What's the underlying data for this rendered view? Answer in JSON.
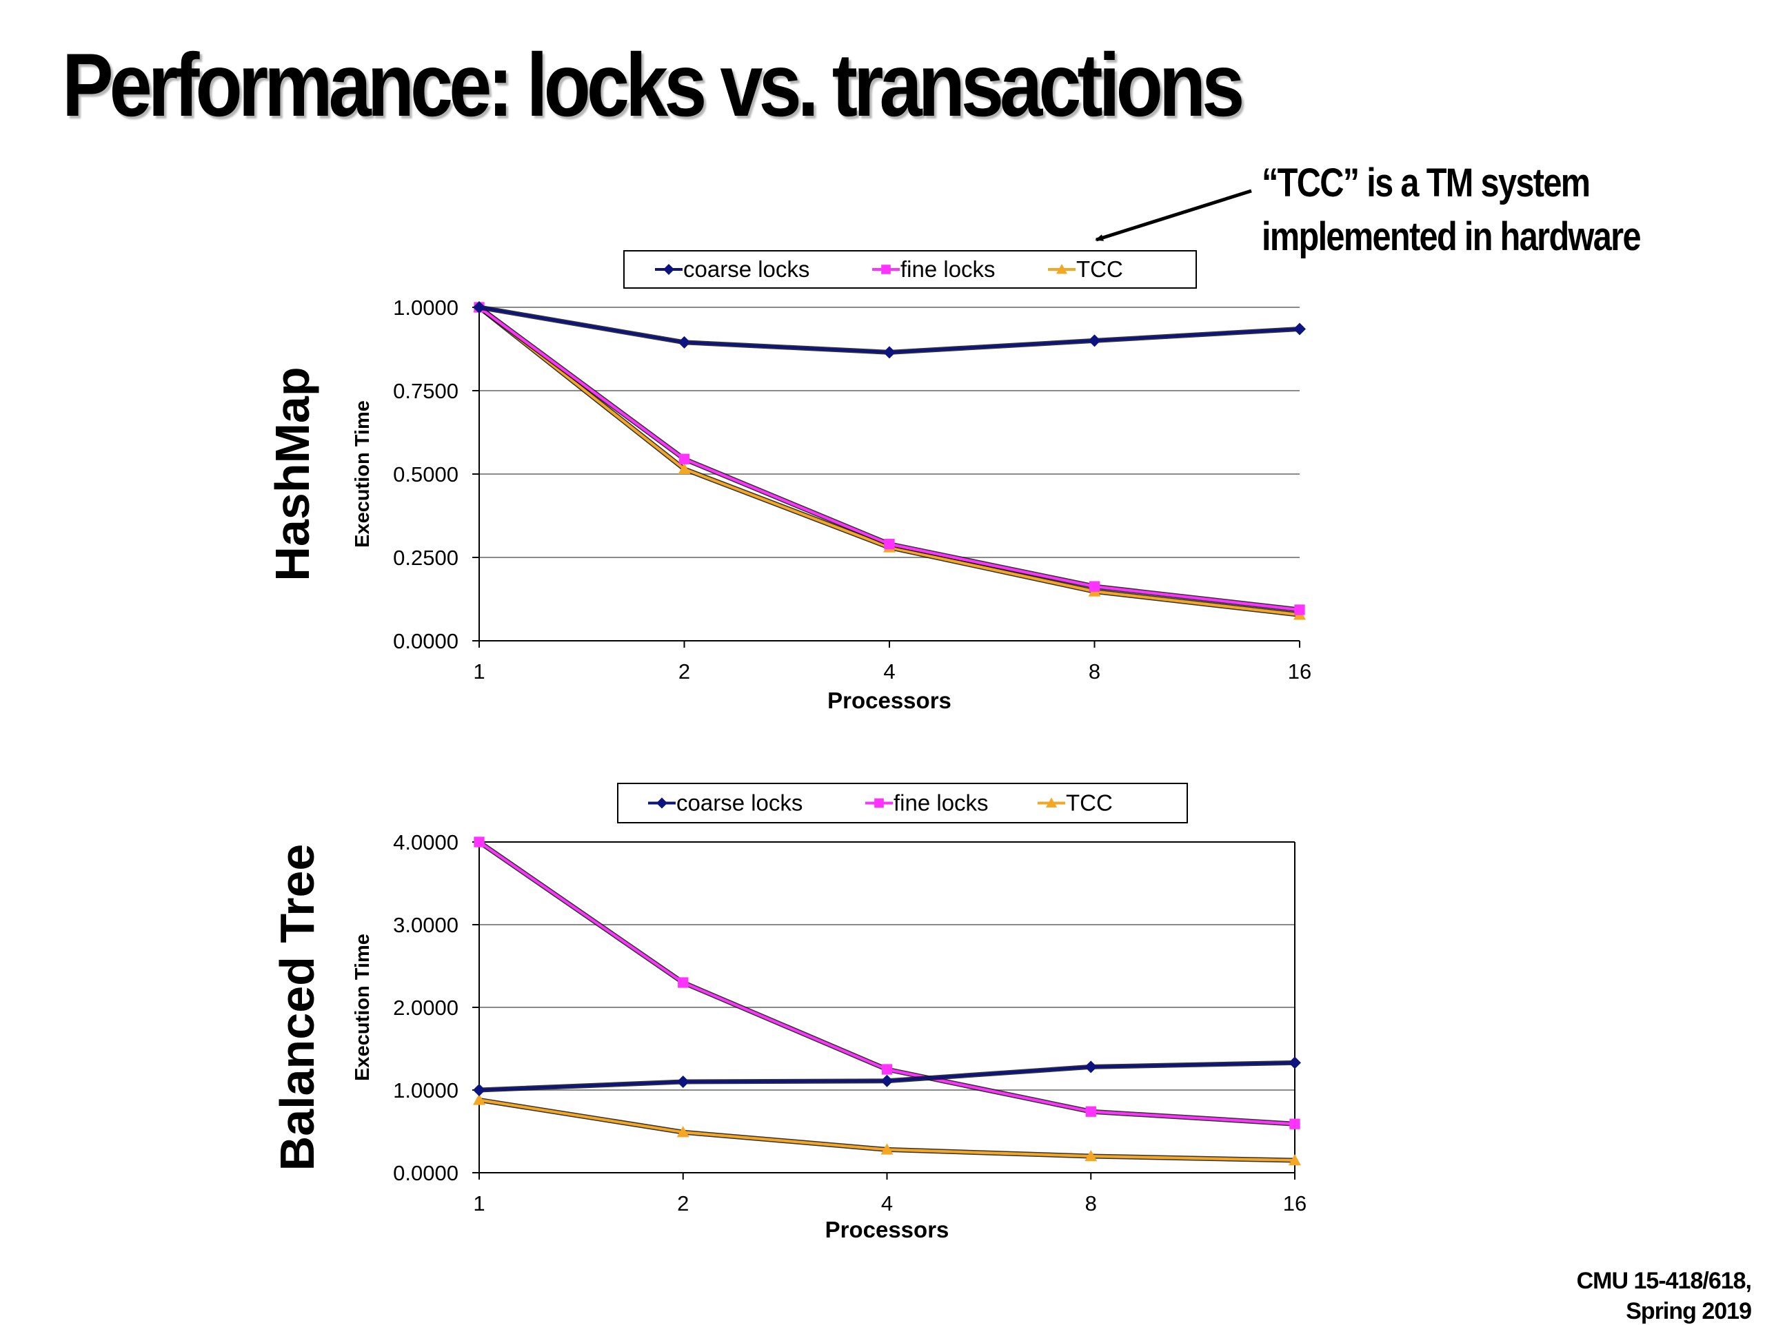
{
  "slide": {
    "title": "Performance: locks vs. transactions",
    "callout": [
      "“TCC” is a TM system",
      "implemented in hardware"
    ],
    "footer": [
      "CMU 15-418/618,",
      "Spring 2019"
    ]
  },
  "colors": {
    "coarse_locks": "#0d1480",
    "fine_locks": "#ff33ff",
    "TCC": "#f5a623"
  },
  "chart_data": [
    {
      "type": "line",
      "row_label": "HashMap",
      "x": [
        "1",
        "2",
        "4",
        "8",
        "16"
      ],
      "xlabel": "Processors",
      "ylabel": "Execution Time",
      "ylim": [
        0,
        1
      ],
      "yticks": [
        "0.0000",
        "0.2500",
        "0.5000",
        "0.7500",
        "1.0000"
      ],
      "legend": "top",
      "grid": true,
      "series": [
        {
          "name": "coarse locks",
          "marker": "diamond",
          "values": [
            1.0,
            0.895,
            0.865,
            0.9,
            0.935
          ]
        },
        {
          "name": "fine locks",
          "marker": "square",
          "values": [
            1.0,
            0.545,
            0.29,
            0.163,
            0.093
          ]
        },
        {
          "name": "TCC",
          "marker": "triangle",
          "values": [
            1.0,
            0.515,
            0.28,
            0.148,
            0.078
          ]
        }
      ]
    },
    {
      "type": "line",
      "row_label": "Balanced Tree",
      "x": [
        "1",
        "2",
        "4",
        "8",
        "16"
      ],
      "xlabel": "Processors",
      "ylabel": "Execution Time",
      "ylim": [
        0,
        4
      ],
      "yticks": [
        "0.0000",
        "1.0000",
        "2.0000",
        "3.0000",
        "4.0000"
      ],
      "legend": "top",
      "grid": true,
      "series": [
        {
          "name": "coarse locks",
          "marker": "diamond",
          "values": [
            1.0,
            1.1,
            1.11,
            1.28,
            1.33
          ]
        },
        {
          "name": "fine locks",
          "marker": "square",
          "values": [
            4.0,
            2.3,
            1.25,
            0.74,
            0.59
          ]
        },
        {
          "name": "TCC",
          "marker": "triangle",
          "values": [
            0.88,
            0.49,
            0.28,
            0.2,
            0.15
          ]
        }
      ]
    }
  ]
}
